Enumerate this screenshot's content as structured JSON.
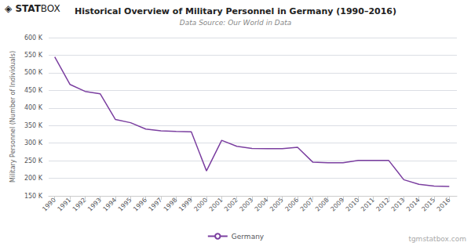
{
  "chart_data": {
    "type": "line",
    "title": "Historical Overview of Military Personnel in Germany (1990–2016)",
    "subtitle": "Data Source: Our World in Data",
    "ylabel": "Military Personnel (Number of Individuals)",
    "annotations": [
      "◈",
      "STAT",
      "BOX",
      "tgmstatbox.com"
    ],
    "x": [
      1990,
      1991,
      1992,
      1993,
      1994,
      1995,
      1996,
      1997,
      1998,
      1999,
      2000,
      2001,
      2002,
      2003,
      2004,
      2005,
      2006,
      2007,
      2008,
      2009,
      2010,
      2011,
      2012,
      2013,
      2014,
      2015,
      2016
    ],
    "series": [
      {
        "name": "Germany",
        "color": "#7B3FA0",
        "values": [
          545000,
          467000,
          447000,
          440000,
          367000,
          358000,
          340000,
          335000,
          333000,
          332000,
          221000,
          308000,
          291000,
          285000,
          284000,
          284000,
          288000,
          246000,
          244000,
          244000,
          251000,
          251000,
          251000,
          196000,
          183000,
          178000,
          177000
        ]
      }
    ],
    "xlim": [
      1989.6,
      2016.5
    ],
    "xticks": [
      1990,
      1991,
      1992,
      1993,
      1994,
      1995,
      1996,
      1997,
      1998,
      1999,
      2000,
      2001,
      2002,
      2003,
      2004,
      2005,
      2006,
      2007,
      2008,
      2009,
      2010,
      2011,
      2012,
      2013,
      2014,
      2015,
      2016
    ],
    "ylim": [
      150000,
      600000
    ],
    "yticks": [
      {
        "value": 150000,
        "label": "150 K"
      },
      {
        "value": 200000,
        "label": "200 K"
      },
      {
        "value": 250000,
        "label": "250 K"
      },
      {
        "value": 300000,
        "label": "300 K"
      },
      {
        "value": 350000,
        "label": "350 K"
      },
      {
        "value": 400000,
        "label": "400 K"
      },
      {
        "value": 450000,
        "label": "450 K"
      },
      {
        "value": 500000,
        "label": "500 K"
      },
      {
        "value": 550000,
        "label": "550 K"
      },
      {
        "value": 600000,
        "label": "600 K"
      }
    ],
    "grid": true
  }
}
